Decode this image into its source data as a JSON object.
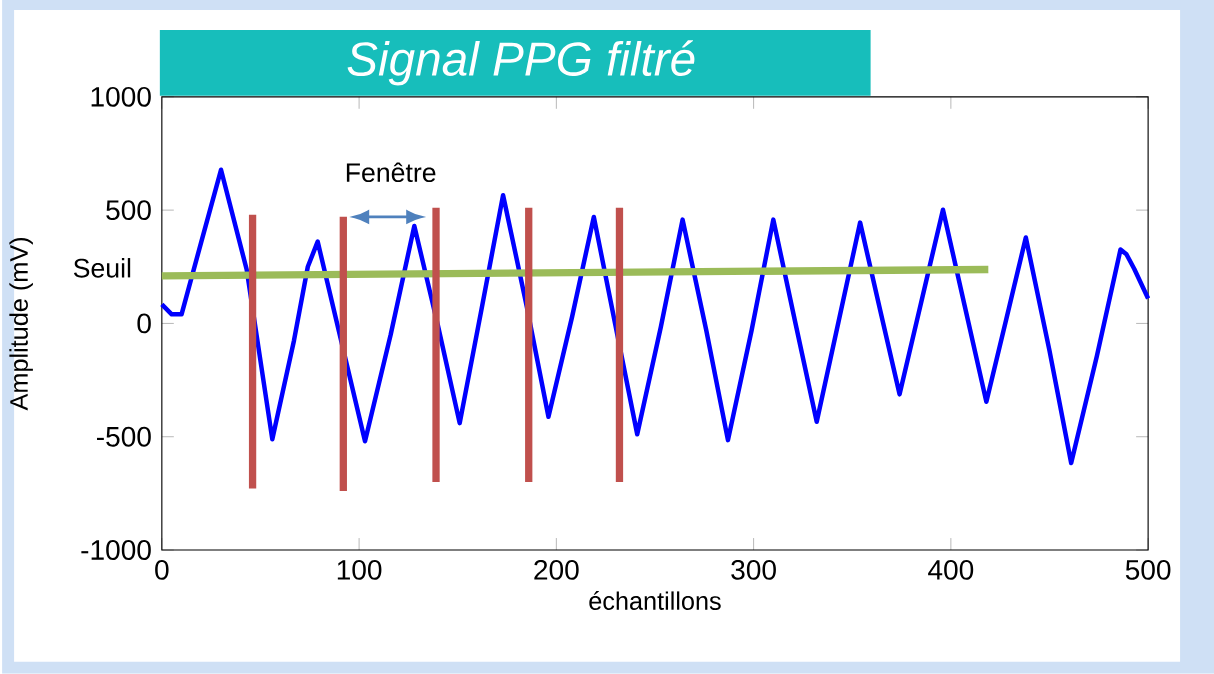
{
  "chart_data": {
    "type": "line",
    "title": "Signal PPG filtré",
    "xlabel": "échantillons",
    "ylabel": "Amplitude (mV)",
    "xlim": [
      0,
      500
    ],
    "ylim": [
      -1000,
      1000
    ],
    "xticks": [
      0,
      100,
      200,
      300,
      400,
      500
    ],
    "yticks": [
      -1000,
      -500,
      0,
      500,
      1000
    ],
    "grid": false,
    "legend": false,
    "marker": "none",
    "line_style": "solid",
    "annotations": [
      "Fenêtre"
    ],
    "series": [
      {
        "color": "#0000ff",
        "x": [
          0,
          5,
          10,
          20,
          30,
          43,
          56,
          67,
          74,
          79,
          91,
          103,
          116,
          128,
          140,
          151,
          162,
          173,
          185,
          196,
          208,
          219,
          230,
          241,
          253,
          264,
          276,
          287,
          299,
          310,
          321,
          332,
          343,
          354,
          364,
          374,
          385,
          396,
          407,
          418,
          428,
          438,
          450,
          461,
          474,
          486,
          489,
          493,
          500
        ],
        "values": [
          84,
          40,
          40,
          360,
          678,
          238,
          -511,
          -75,
          250,
          361,
          -80,
          -520,
          -50,
          430,
          -10,
          -440,
          60,
          566,
          75,
          -412,
          30,
          470,
          -10,
          -489,
          -15,
          458,
          -30,
          -515,
          -30,
          458,
          10,
          -434,
          5,
          445,
          65,
          -313,
          95,
          502,
          78,
          -346,
          15,
          379,
          -120,
          -616,
          -145,
          326,
          305,
          240,
          110
        ]
      },
      {
        "name": "Seuil",
        "color": "#9bbb59",
        "x": [
          0,
          419
        ],
        "values": [
          210,
          238
        ]
      },
      {
        "color": "#c0504d",
        "x": [
          46,
          46
        ],
        "values": [
          480,
          -728
        ]
      },
      {
        "color": "#c0504d",
        "x": [
          92,
          92
        ],
        "values": [
          471,
          -740
        ]
      },
      {
        "color": "#c0504d",
        "x": [
          139,
          139
        ],
        "values": [
          511,
          -700
        ]
      },
      {
        "color": "#c0504d",
        "x": [
          186,
          186
        ],
        "values": [
          511,
          -700
        ]
      },
      {
        "color": "#c0504d",
        "x": [
          232,
          232
        ],
        "values": [
          511,
          -700
        ]
      }
    ]
  }
}
